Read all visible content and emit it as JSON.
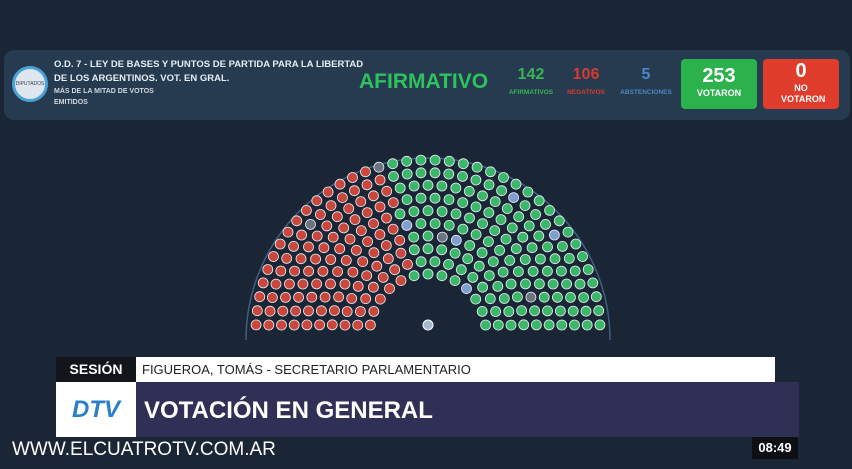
{
  "header": {
    "logo_text": "DIPUTADOS",
    "title": "O.D. 7 - LEY DE BASES Y PUNTOS DE PARTIDA PARA LA LIBERTAD DE LOS ARGENTINOS. VOT. EN GRAL.",
    "majority": "MÁS DE LA MITAD DE VOTOS EMITIDOS",
    "result": "AFIRMATIVO",
    "afirmativos": {
      "value": "142",
      "label": "AFIRMATIVOS",
      "color": "#39b457"
    },
    "negativos": {
      "value": "106",
      "label": "NEGATIVOS",
      "color": "#d63a30"
    },
    "abstenciones": {
      "value": "5",
      "label": "ABSTENCIONES",
      "color": "#4d86c6"
    },
    "votaron": {
      "value": "253",
      "label": "VOTARON",
      "color": "#2bb24c"
    },
    "no_votaron": {
      "value": "0",
      "label": "NO VOTARON",
      "color": "#e03c2c"
    }
  },
  "hemicycle": {
    "affirmative": 142,
    "negative": 106,
    "abstention": 5,
    "absent": 4,
    "colors": {
      "affirmative": "#3bb76a",
      "negative": "#c9473d",
      "abstention": "#7f9fd0",
      "absent": "#6b7480"
    }
  },
  "lower_third": {
    "section": "SESIÓN",
    "speaker": "FIGUEROA, TOMÁS - SECRETARIO PARLAMENTARIO",
    "headline": "VOTACIÓN EN GENERAL",
    "channel_logo": "DTV",
    "website": "WWW.ELCUATROTV.COM.AR",
    "clock": "08:49"
  }
}
